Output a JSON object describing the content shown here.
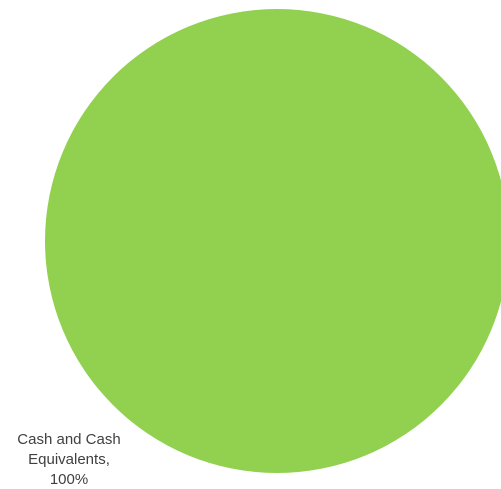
{
  "chart_data": {
    "type": "pie",
    "title": "",
    "slices": [
      {
        "name": "Cash and Cash Equivalents",
        "value": 100,
        "color": "#92d050",
        "label_lines": [
          "Cash and Cash",
          "Equivalents,",
          "100%"
        ]
      }
    ],
    "legend": "none"
  }
}
